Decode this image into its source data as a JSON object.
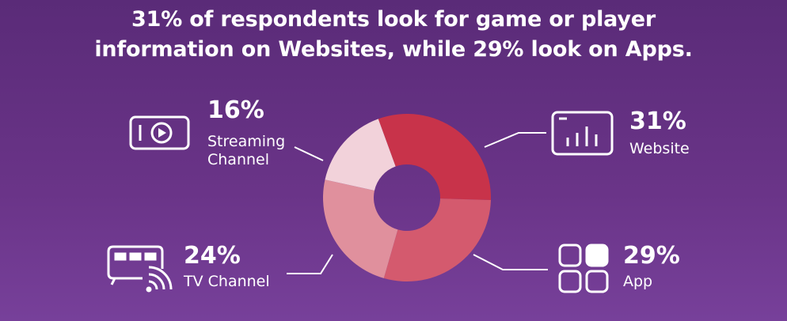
{
  "chart_data": {
    "type": "donut",
    "title": "31% of respondents look for game or player information on Websites, while 29% look on Apps.",
    "categories": [
      "Website",
      "App",
      "TV Channel",
      "Streaming Channel"
    ],
    "values": [
      31,
      29,
      24,
      16
    ],
    "value_labels": [
      "31%",
      "29%",
      "24%",
      "16%"
    ],
    "colors": [
      "#c8334a",
      "#d45a6e",
      "#e0909d",
      "#f2d2da"
    ]
  }
}
